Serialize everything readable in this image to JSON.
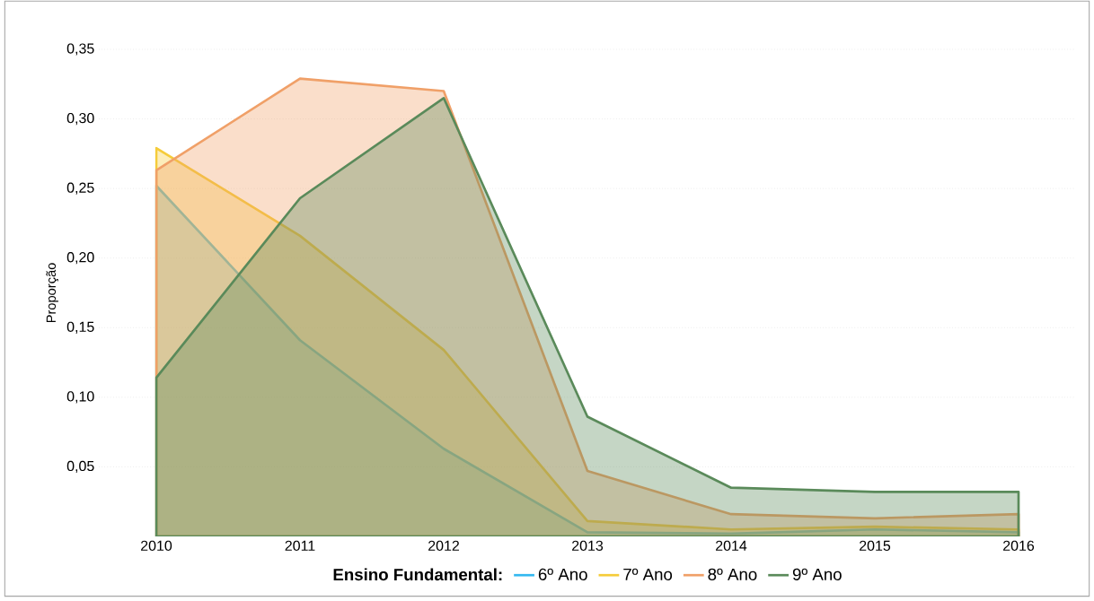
{
  "chart_data": {
    "type": "area",
    "ylabel": "Proporção",
    "legend_title": "Ensino Fundamental:",
    "legend": "bottom",
    "grid": "y",
    "x": [
      2010,
      2011,
      2012,
      2013,
      2014,
      2015,
      2016
    ],
    "xlim": [
      2009.6,
      2016.4
    ],
    "xticks": [
      2010,
      2011,
      2012,
      2013,
      2014,
      2015,
      2016
    ],
    "ylim": [
      0,
      0.35
    ],
    "yticks": [
      {
        "value": 0.05,
        "label": "0,05"
      },
      {
        "value": 0.1,
        "label": "0,10"
      },
      {
        "value": 0.15,
        "label": "0,15"
      },
      {
        "value": 0.2,
        "label": "0,20"
      },
      {
        "value": 0.25,
        "label": "0,25"
      },
      {
        "value": 0.3,
        "label": "0,30"
      },
      {
        "value": 0.35,
        "label": "0,35"
      }
    ],
    "series": [
      {
        "name": "6º Ano",
        "color": "#33b8f0",
        "values": [
          0.252,
          0.141,
          0.063,
          0.003,
          0.002,
          0.005,
          0.003
        ]
      },
      {
        "name": "7º Ano",
        "color": "#f5cc3a",
        "values": [
          0.279,
          0.216,
          0.134,
          0.011,
          0.005,
          0.007,
          0.005
        ]
      },
      {
        "name": "8º Ano",
        "color": "#f0a068",
        "values": [
          0.263,
          0.329,
          0.32,
          0.047,
          0.016,
          0.013,
          0.016
        ]
      },
      {
        "name": "9º Ano",
        "color": "#5a8a5a",
        "values": [
          0.114,
          0.243,
          0.315,
          0.086,
          0.035,
          0.032,
          0.032
        ]
      }
    ]
  }
}
